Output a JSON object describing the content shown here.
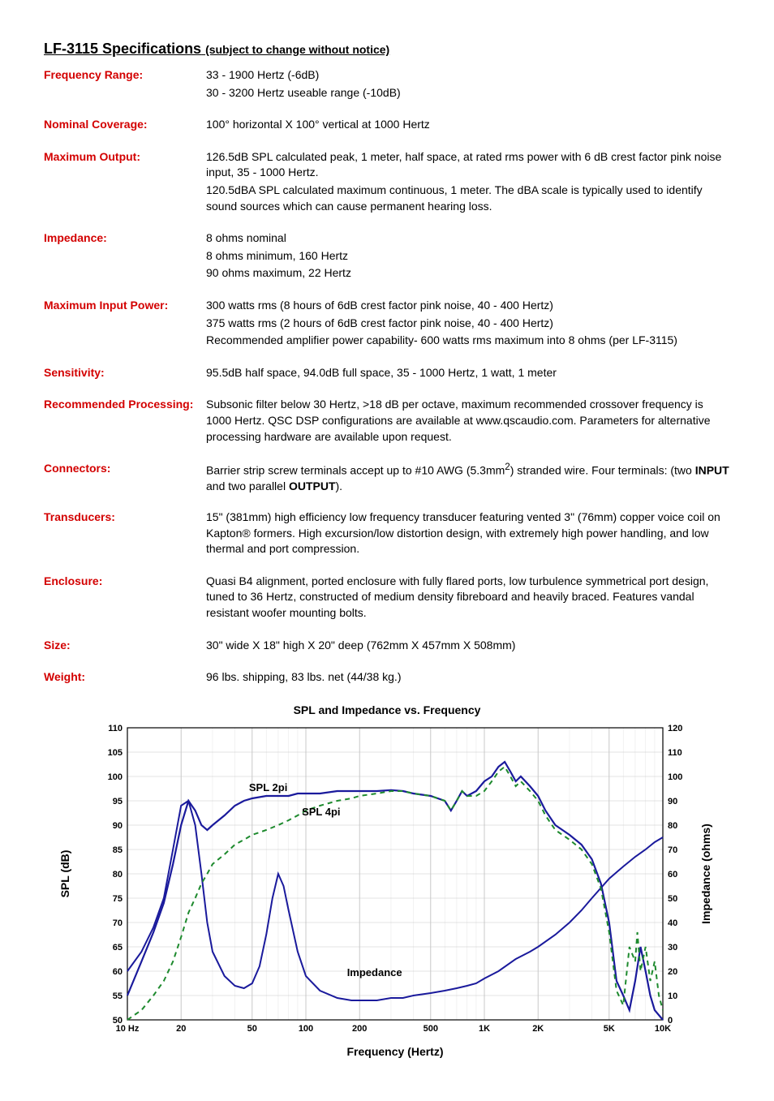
{
  "title_main": "LF-3115 Specifications",
  "title_sub": "(subject to change without notice)",
  "specs": [
    {
      "label": "Frequency Range:",
      "lines": [
        "33 - 1900 Hertz (-6dB)",
        "30 - 3200 Hertz useable range (-10dB)"
      ]
    },
    {
      "label": "Nominal Coverage:",
      "lines": [
        "100° horizontal X 100° vertical at 1000 Hertz"
      ]
    },
    {
      "label": "Maximum Output:",
      "lines": [
        "126.5dB SPL calculated peak, 1 meter, half space, at rated rms power with 6 dB crest factor pink noise input, 35 - 1000 Hertz.",
        "120.5dBA SPL calculated maximum continuous, 1 meter. The dBA scale is typically used to identify sound sources which can cause permanent hearing loss."
      ]
    },
    {
      "label": "Impedance:",
      "lines": [
        "8 ohms nominal",
        "8 ohms minimum, 160 Hertz",
        "90 ohms maximum, 22 Hertz"
      ]
    },
    {
      "label": "Maximum Input Power:",
      "lines": [
        "300 watts rms (8 hours of 6dB crest factor pink noise, 40 - 400 Hertz)",
        "375 watts rms (2 hours of 6dB crest factor pink noise, 40 - 400 Hertz)",
        "Recommended amplifier power capability- 600 watts rms maximum into 8 ohms (per LF-3115)"
      ]
    },
    {
      "label": "Sensitivity:",
      "lines": [
        "95.5dB half space, 94.0dB full space, 35 - 1000 Hertz, 1 watt, 1 meter"
      ]
    },
    {
      "label": "Recommended Processing:",
      "lines": [
        "Subsonic filter below 30 Hertz, >18 dB per octave, maximum recommended crossover frequency is 1000 Hertz. QSC DSP configurations are available at www.qscaudio.com. Parameters for alternative processing hardware are available upon request."
      ]
    },
    {
      "label": "Connectors:",
      "html": "Barrier strip screw terminals accept up to #10 AWG (5.3mm<sup>2</sup>) stranded wire. Four terminals: (two <b>INPUT</b> and two parallel <b>OUTPUT</b>)."
    },
    {
      "label": "Transducers:",
      "lines": [
        "15\" (381mm) high efficiency low frequency transducer featuring vented 3\" (76mm) copper voice coil on Kapton® formers.  High excursion/low distortion design, with extremely high power handling, and low thermal and port compression."
      ]
    },
    {
      "label": "Enclosure:",
      "lines": [
        "Quasi B4 alignment, ported enclosure with fully flared ports, low turbulence symmetrical port design, tuned to 36 Hertz, constructed of medium density fibreboard and heavily braced. Features vandal resistant woofer mounting bolts."
      ]
    },
    {
      "label": "Size:",
      "lines": [
        "30\" wide X 18\" high X 20\" deep (762mm X 457mm X 508mm)"
      ]
    },
    {
      "label": "Weight:",
      "lines": [
        "96 lbs. shipping, 83 lbs. net (44/38 kg.)"
      ]
    }
  ],
  "chart": {
    "title": "SPL and Impedance vs. Frequency",
    "xLabel": "Frequency (Hertz)",
    "yLabelLeft": "SPL (dB)",
    "yLabelRight": "Impedance (ohms)",
    "xTicks": [
      10,
      20,
      50,
      100,
      200,
      500,
      1000,
      2000,
      5000,
      10000
    ],
    "xTickLabels": [
      "10  Hz",
      "20",
      "50",
      "100",
      "200",
      "500",
      "1K",
      "2K",
      "5K",
      "10K"
    ],
    "yLeftMin": 50,
    "yLeftMax": 110,
    "yLeftStep": 5,
    "yRightMin": 0,
    "yRightMax": 120,
    "yRightStep": 10,
    "colors": {
      "grid": "#c8c8c8",
      "gridMinor": "#e4e4e4",
      "spl2pi": "#1a1a9c",
      "spl4pi": "#1e8a2e",
      "impedance": "#1a1a9c",
      "spl4piDash": "6 5"
    },
    "annotations": [
      {
        "text": "SPL 2pi",
        "freq": 48,
        "spl": 97
      },
      {
        "text": "SPL 4pi",
        "freq": 95,
        "spl": 92
      },
      {
        "text": "Impedance",
        "freq": 170,
        "spl": 59
      }
    ],
    "spl2pi": [
      [
        10,
        55
      ],
      [
        12,
        62
      ],
      [
        14,
        68
      ],
      [
        16,
        74
      ],
      [
        18,
        82
      ],
      [
        20,
        90
      ],
      [
        22,
        95
      ],
      [
        24,
        93
      ],
      [
        26,
        90
      ],
      [
        28,
        89
      ],
      [
        30,
        90
      ],
      [
        35,
        92
      ],
      [
        40,
        94
      ],
      [
        45,
        95
      ],
      [
        50,
        95.5
      ],
      [
        60,
        96
      ],
      [
        70,
        96
      ],
      [
        80,
        96
      ],
      [
        90,
        96.5
      ],
      [
        100,
        96.5
      ],
      [
        120,
        96.5
      ],
      [
        150,
        97
      ],
      [
        180,
        97
      ],
      [
        200,
        97
      ],
      [
        250,
        97
      ],
      [
        300,
        97.2
      ],
      [
        350,
        97
      ],
      [
        400,
        96.5
      ],
      [
        500,
        96
      ],
      [
        600,
        95
      ],
      [
        650,
        93
      ],
      [
        700,
        95
      ],
      [
        750,
        97
      ],
      [
        800,
        96
      ],
      [
        900,
        97
      ],
      [
        1000,
        99
      ],
      [
        1100,
        100
      ],
      [
        1200,
        102
      ],
      [
        1300,
        103
      ],
      [
        1400,
        101
      ],
      [
        1500,
        99
      ],
      [
        1600,
        100
      ],
      [
        1800,
        98
      ],
      [
        2000,
        96
      ],
      [
        2200,
        93
      ],
      [
        2500,
        90
      ],
      [
        3000,
        88
      ],
      [
        3500,
        86
      ],
      [
        4000,
        83
      ],
      [
        4500,
        78
      ],
      [
        5000,
        70
      ],
      [
        5500,
        58
      ],
      [
        6000,
        55
      ],
      [
        6500,
        52
      ],
      [
        7000,
        58
      ],
      [
        7500,
        65
      ],
      [
        8000,
        60
      ],
      [
        8500,
        55
      ],
      [
        9000,
        52
      ],
      [
        10000,
        50
      ]
    ],
    "spl4pi": [
      [
        10,
        50
      ],
      [
        12,
        52
      ],
      [
        14,
        55
      ],
      [
        16,
        58
      ],
      [
        18,
        62
      ],
      [
        20,
        67
      ],
      [
        22,
        72
      ],
      [
        24,
        75
      ],
      [
        26,
        78
      ],
      [
        28,
        80
      ],
      [
        30,
        82
      ],
      [
        35,
        84
      ],
      [
        40,
        86
      ],
      [
        45,
        87
      ],
      [
        50,
        88
      ],
      [
        60,
        89
      ],
      [
        70,
        90
      ],
      [
        80,
        91
      ],
      [
        90,
        92
      ],
      [
        100,
        93
      ],
      [
        120,
        94
      ],
      [
        150,
        95
      ],
      [
        180,
        95.5
      ],
      [
        200,
        96
      ],
      [
        250,
        96.5
      ],
      [
        300,
        97
      ],
      [
        350,
        97
      ],
      [
        400,
        96.5
      ],
      [
        500,
        96
      ],
      [
        600,
        95
      ],
      [
        650,
        93
      ],
      [
        700,
        95
      ],
      [
        750,
        97
      ],
      [
        800,
        96
      ],
      [
        900,
        96
      ],
      [
        1000,
        97
      ],
      [
        1100,
        99
      ],
      [
        1200,
        101
      ],
      [
        1300,
        102
      ],
      [
        1400,
        100
      ],
      [
        1500,
        98
      ],
      [
        1600,
        99
      ],
      [
        1800,
        97
      ],
      [
        2000,
        95
      ],
      [
        2200,
        92
      ],
      [
        2500,
        89
      ],
      [
        3000,
        87
      ],
      [
        3500,
        85
      ],
      [
        4000,
        82
      ],
      [
        4500,
        77
      ],
      [
        5000,
        68
      ],
      [
        5500,
        56
      ],
      [
        6000,
        53
      ],
      [
        6500,
        65
      ],
      [
        7000,
        62
      ],
      [
        7200,
        68
      ],
      [
        7500,
        60
      ],
      [
        8000,
        65
      ],
      [
        8500,
        58
      ],
      [
        9000,
        62
      ],
      [
        9500,
        55
      ],
      [
        10000,
        52
      ]
    ],
    "impedance": [
      [
        10,
        20
      ],
      [
        12,
        28
      ],
      [
        14,
        38
      ],
      [
        16,
        50
      ],
      [
        18,
        70
      ],
      [
        20,
        88
      ],
      [
        22,
        90
      ],
      [
        24,
        80
      ],
      [
        26,
        60
      ],
      [
        28,
        40
      ],
      [
        30,
        28
      ],
      [
        35,
        18
      ],
      [
        40,
        14
      ],
      [
        45,
        13
      ],
      [
        50,
        15
      ],
      [
        55,
        22
      ],
      [
        60,
        35
      ],
      [
        65,
        50
      ],
      [
        70,
        60
      ],
      [
        75,
        55
      ],
      [
        80,
        45
      ],
      [
        90,
        28
      ],
      [
        100,
        18
      ],
      [
        120,
        12
      ],
      [
        150,
        9
      ],
      [
        180,
        8
      ],
      [
        200,
        8
      ],
      [
        250,
        8
      ],
      [
        300,
        9
      ],
      [
        350,
        9
      ],
      [
        400,
        10
      ],
      [
        500,
        11
      ],
      [
        600,
        12
      ],
      [
        700,
        13
      ],
      [
        800,
        14
      ],
      [
        900,
        15
      ],
      [
        1000,
        17
      ],
      [
        1200,
        20
      ],
      [
        1500,
        25
      ],
      [
        1800,
        28
      ],
      [
        2000,
        30
      ],
      [
        2500,
        35
      ],
      [
        3000,
        40
      ],
      [
        3500,
        45
      ],
      [
        4000,
        50
      ],
      [
        5000,
        58
      ],
      [
        6000,
        63
      ],
      [
        7000,
        67
      ],
      [
        8000,
        70
      ],
      [
        9000,
        73
      ],
      [
        10000,
        75
      ]
    ]
  }
}
